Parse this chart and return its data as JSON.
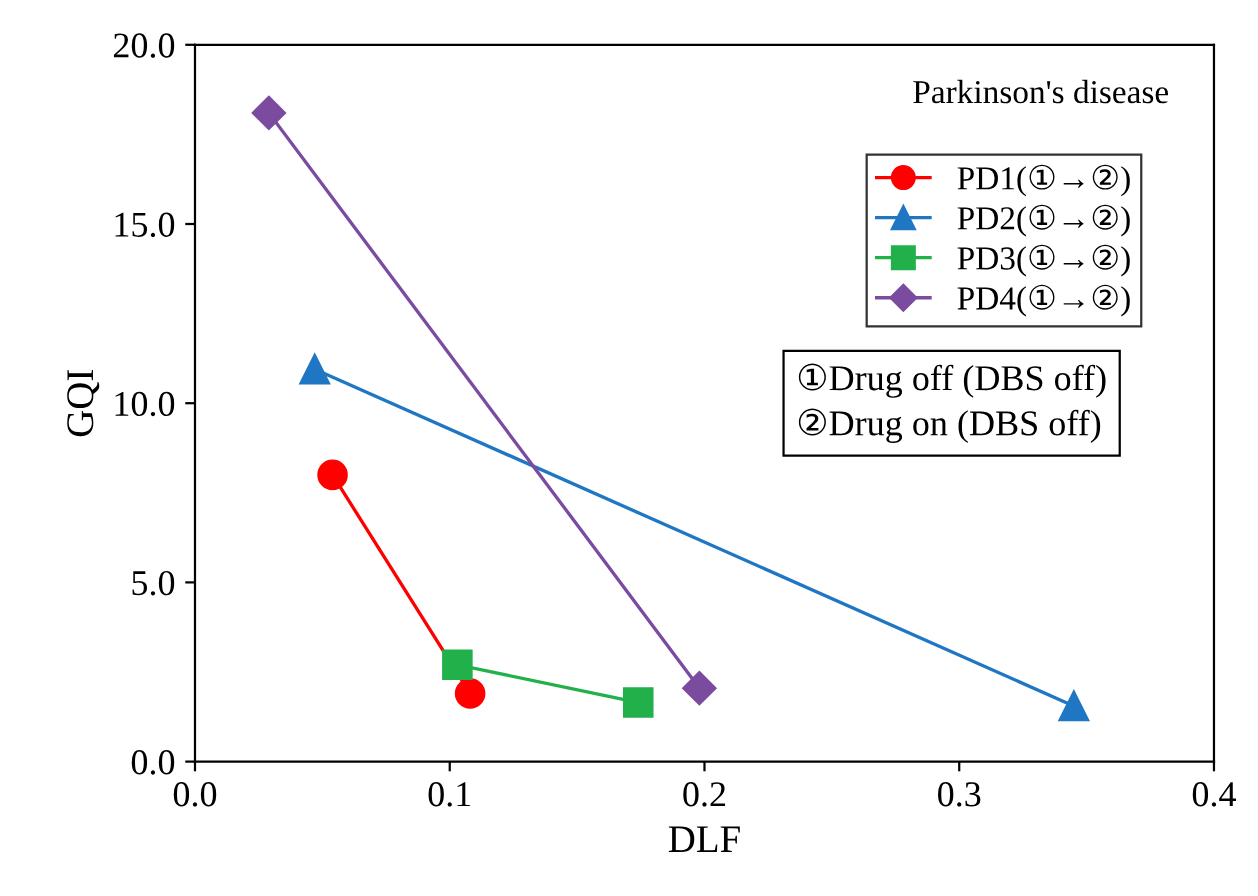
{
  "chart_data": {
    "type": "line",
    "xlabel": "DLF",
    "ylabel": "GQI",
    "legend_title": "Parkinson's disease",
    "series": [
      {
        "name": "PD1(①→②)",
        "color": "#ff0000",
        "marker": "circle",
        "x": [
          0.054,
          0.108
        ],
        "values": [
          8.0,
          1.9
        ]
      },
      {
        "name": "PD2(①→②)",
        "color": "#1f77c4",
        "marker": "triangle",
        "x": [
          0.047,
          0.345
        ],
        "values": [
          10.95,
          1.55
        ]
      },
      {
        "name": "PD3(①→②)",
        "color": "#22b04a",
        "marker": "square",
        "x": [
          0.103,
          0.174
        ],
        "values": [
          2.7,
          1.65
        ]
      },
      {
        "name": "PD4(①→②)",
        "color": "#7b4ba0",
        "marker": "diamond",
        "x": [
          0.029,
          0.198
        ],
        "values": [
          18.1,
          2.05
        ]
      }
    ],
    "xlim": [
      0.0,
      0.4
    ],
    "xticks": [
      {
        "value": 0.0,
        "label": "0.0"
      },
      0.1,
      0.2,
      0.3,
      0.4
    ],
    "ylim": [
      0.0,
      20.0
    ],
    "yticks": [
      {
        "value": 0.0,
        "label": "0.0"
      },
      {
        "value": 5.0,
        "label": "5.0"
      },
      {
        "value": 10.0,
        "label": "10.0"
      },
      {
        "value": 15.0,
        "label": "15.0"
      },
      {
        "value": 20.0,
        "label": "20.0"
      }
    ],
    "grid": false,
    "legend": "top right",
    "annotations": [
      "①Drug off (DBS off)\n②Drug on (DBS off)"
    ]
  }
}
